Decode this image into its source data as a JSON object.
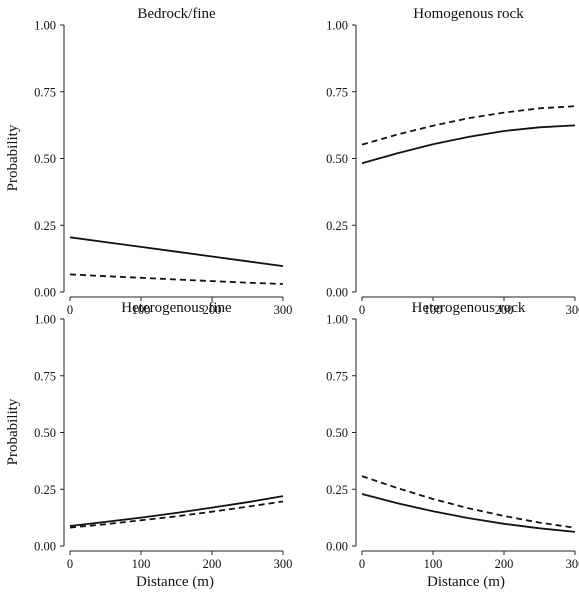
{
  "figure": {
    "y_axis_title": "Probability",
    "x_axis_title": "Distance (m)"
  },
  "chart_data": [
    {
      "type": "line",
      "title": "Bedrock/fine",
      "xlabel": "",
      "ylabel": "Probability",
      "xlim": [
        0,
        300
      ],
      "ylim": [
        0,
        1
      ],
      "x_ticks": [
        "0",
        "100",
        "200",
        "300"
      ],
      "y_ticks": [
        "0.00",
        "0.25",
        "0.50",
        "0.75",
        "1.00"
      ],
      "grid": false,
      "series": [
        {
          "style": "solid",
          "x": [
            0,
            50,
            100,
            150,
            200,
            250,
            300
          ],
          "y": [
            0.205,
            0.187,
            0.169,
            0.151,
            0.133,
            0.115,
            0.097
          ]
        },
        {
          "style": "dashed",
          "x": [
            0,
            50,
            100,
            150,
            200,
            250,
            300
          ],
          "y": [
            0.066,
            0.059,
            0.053,
            0.047,
            0.041,
            0.035,
            0.03
          ]
        }
      ]
    },
    {
      "type": "line",
      "title": "Homogenous rock",
      "xlabel": "",
      "ylabel": "",
      "xlim": [
        0,
        300
      ],
      "ylim": [
        0,
        1
      ],
      "x_ticks": [
        "0",
        "100",
        "200",
        "300"
      ],
      "y_ticks": [
        "0.00",
        "0.25",
        "0.50",
        "0.75",
        "1.00"
      ],
      "grid": false,
      "series": [
        {
          "style": "solid",
          "x": [
            0,
            50,
            100,
            150,
            200,
            250,
            300
          ],
          "y": [
            0.482,
            0.52,
            0.553,
            0.581,
            0.603,
            0.617,
            0.624
          ]
        },
        {
          "style": "dashed",
          "x": [
            0,
            50,
            100,
            150,
            200,
            250,
            300
          ],
          "y": [
            0.552,
            0.59,
            0.623,
            0.651,
            0.672,
            0.688,
            0.696
          ]
        }
      ]
    },
    {
      "type": "line",
      "title": "Heterogenous fine",
      "xlabel": "Distance (m)",
      "ylabel": "Probability",
      "xlim": [
        0,
        300
      ],
      "ylim": [
        0,
        1
      ],
      "x_ticks": [
        "0",
        "100",
        "200",
        "300"
      ],
      "y_ticks": [
        "0.00",
        "0.25",
        "0.50",
        "0.75",
        "1.00"
      ],
      "grid": false,
      "series": [
        {
          "style": "solid",
          "x": [
            0,
            50,
            100,
            150,
            200,
            250,
            300
          ],
          "y": [
            0.088,
            0.106,
            0.125,
            0.146,
            0.169,
            0.193,
            0.22
          ]
        },
        {
          "style": "dashed",
          "x": [
            0,
            50,
            100,
            150,
            200,
            250,
            300
          ],
          "y": [
            0.081,
            0.096,
            0.113,
            0.131,
            0.151,
            0.173,
            0.196
          ]
        }
      ]
    },
    {
      "type": "line",
      "title": "Heterogenous rock",
      "xlabel": "Distance (m)",
      "ylabel": "",
      "xlim": [
        0,
        300
      ],
      "ylim": [
        0,
        1
      ],
      "x_ticks": [
        "0",
        "100",
        "200",
        "300"
      ],
      "y_ticks": [
        "0.00",
        "0.25",
        "0.50",
        "0.75",
        "1.00"
      ],
      "grid": false,
      "series": [
        {
          "style": "solid",
          "x": [
            0,
            50,
            100,
            150,
            200,
            250,
            300
          ],
          "y": [
            0.229,
            0.188,
            0.153,
            0.123,
            0.098,
            0.078,
            0.062
          ]
        },
        {
          "style": "dashed",
          "x": [
            0,
            50,
            100,
            150,
            200,
            250,
            300
          ],
          "y": [
            0.308,
            0.255,
            0.207,
            0.166,
            0.132,
            0.103,
            0.08
          ]
        }
      ]
    }
  ]
}
